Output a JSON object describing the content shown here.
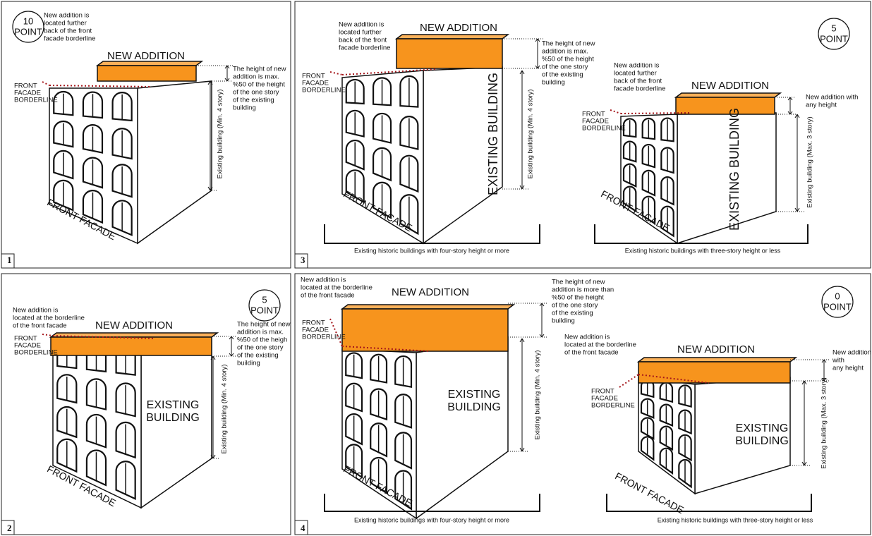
{
  "panels": [
    {
      "number": "1",
      "score": "10",
      "score_label": "POINT",
      "scenes": [
        {
          "new_addition": "NEW ADDITION",
          "addition_note": [
            "New addition is",
            "located further",
            "back of the front",
            "facade borderline"
          ],
          "height_note": [
            "The height of new",
            "addition is max.",
            "%50 of the height",
            "of the one story",
            "of the existing",
            "building"
          ],
          "borderline": [
            "FRONT",
            "FACADE",
            "BORDERLINE"
          ],
          "building_height": "Existing building (Min. 4 story)",
          "front_facade": "FRONT FACADE"
        }
      ]
    },
    {
      "number": "3",
      "score": "5",
      "score_label": "POINT",
      "scenes": [
        {
          "new_addition": "NEW ADDITION",
          "addition_note": [
            "New addition is",
            "located further",
            "back of the front",
            "facade borderline"
          ],
          "height_note": [
            "The height of new",
            "addition is max.",
            "%50 of the height",
            "of the one story",
            "of the existing",
            "building"
          ],
          "borderline": [
            "FRONT",
            "FACADE",
            "BORDERLINE"
          ],
          "building_height": "Existing building (Min. 4 story)",
          "building_label": [
            "EXISTING BUILDING"
          ],
          "front_facade": "FRONT FACADE",
          "caption": "Existing historic buildings with four-story height or more"
        },
        {
          "new_addition": "NEW ADDITION",
          "addition_note": [
            "New addition is",
            "located further",
            "back of the front",
            "facade borderline"
          ],
          "height_note": [
            "New addition with",
            "any height"
          ],
          "borderline": [
            "FRONT",
            "FACADE",
            "BORDERLINE"
          ],
          "building_height": "Existing building (Max. 3 story)",
          "building_label": [
            "EXISTING BUILDING"
          ],
          "front_facade": "FRONT FACADE",
          "caption": "Existing historic buildings with three-story height or less"
        }
      ]
    },
    {
      "number": "2",
      "score": "5",
      "score_label": "POINT",
      "scenes": [
        {
          "new_addition": "NEW ADDITION",
          "addition_note": [
            "New addition is",
            "located at the borderline",
            "of the front facade"
          ],
          "height_note": [
            "The height of new",
            "addition is max.",
            "%50 of the heigh",
            "of the one story",
            "of the existing",
            "building"
          ],
          "borderline": [
            "FRONT",
            "FACADE",
            "BORDERLINE"
          ],
          "building_height": "Existing building (Min. 4 story)",
          "building_label": [
            "EXISTING",
            "BUILDING"
          ],
          "front_facade": "FRONT FACADE"
        }
      ]
    },
    {
      "number": "4",
      "score": "0",
      "score_label": "POINT",
      "scenes": [
        {
          "new_addition": "NEW ADDITION",
          "addition_note": [
            "New addition is",
            "located at the borderline",
            "of the front facade"
          ],
          "height_note": [
            "The height of new",
            "addition is more than",
            "%50 of the height",
            "of the one story",
            "of the existing",
            "building"
          ],
          "borderline": [
            "FRONT",
            "FACADE",
            "BORDERLINE"
          ],
          "building_height": "Existing building (Min. 4 story)",
          "building_label": [
            "EXISTING",
            "BUILDING"
          ],
          "front_facade": "FRONT FACADE",
          "caption": "Existing historic buildings with four-story height or more"
        },
        {
          "new_addition": "NEW ADDITION",
          "addition_note": [
            "New addition is",
            "located at the borderline",
            "of the front facade"
          ],
          "height_note": [
            "New addition",
            "with",
            "any height"
          ],
          "borderline": [
            "FRONT",
            "FACADE",
            "BORDERLINE"
          ],
          "building_height": "Existing building (Max. 3 story)",
          "building_label": [
            "EXISTING",
            "BUILDING"
          ],
          "front_facade": "FRONT FACADE",
          "caption": "Existing historic buildings with three-story height or less"
        }
      ]
    }
  ]
}
